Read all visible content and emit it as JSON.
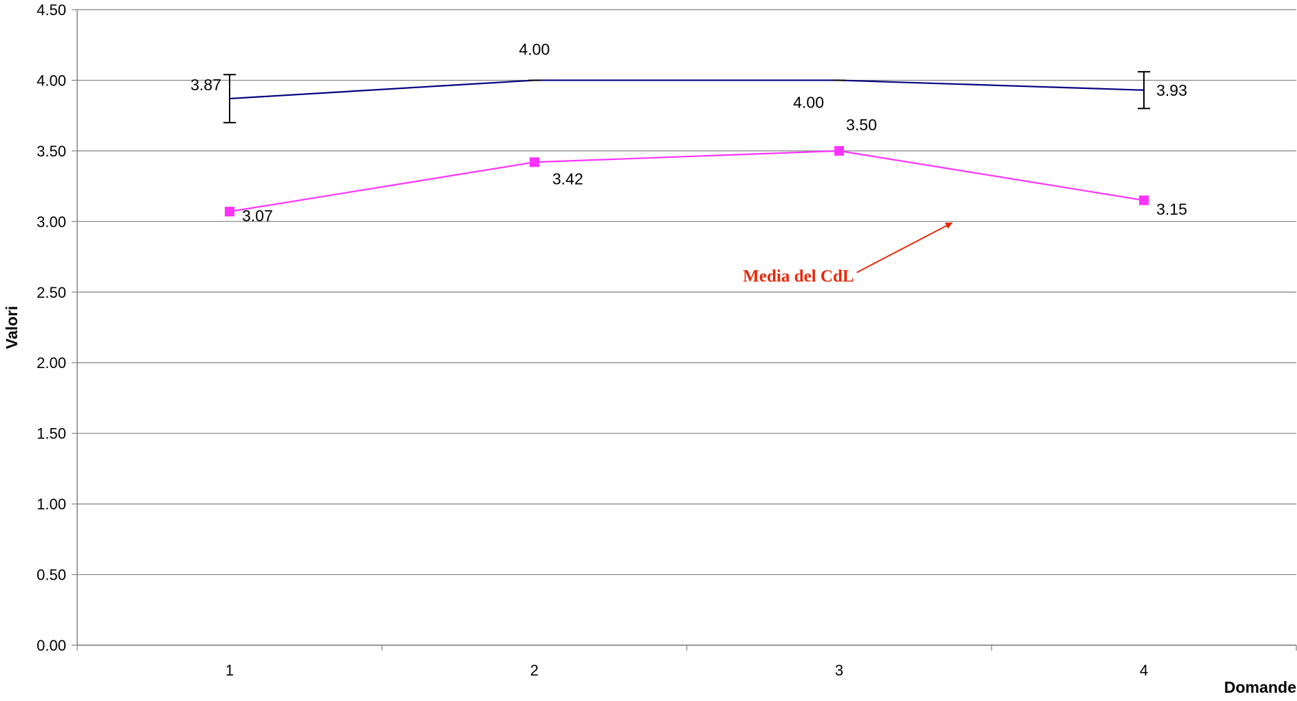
{
  "chart_data": {
    "type": "line",
    "title": "",
    "xlabel": "Domande",
    "ylabel": "Valori",
    "categories": [
      "1",
      "2",
      "3",
      "4"
    ],
    "ylim": [
      0,
      4.5
    ],
    "yticks": [
      "0.00",
      "0.50",
      "1.00",
      "1.50",
      "2.00",
      "2.50",
      "3.00",
      "3.50",
      "4.00",
      "4.50"
    ],
    "grid": true,
    "legend": "none",
    "series": [
      {
        "color": "#000080",
        "marker": "none",
        "values": [
          3.87,
          4.0,
          4.0,
          3.93
        ],
        "labels": [
          "3.87",
          "4.00",
          "4.00",
          "3.93"
        ],
        "error_low": [
          3.7,
          4.0,
          4.0,
          3.8
        ],
        "error_high": [
          4.04,
          4.0,
          4.0,
          4.06
        ]
      },
      {
        "color": "#ff33ff",
        "marker": "square",
        "values": [
          3.07,
          3.42,
          3.5,
          3.15
        ],
        "labels": [
          "3.07",
          "3.42",
          "3.50",
          "3.15"
        ]
      }
    ],
    "annotation": {
      "text": "Media del CdL",
      "color": "#e8290b",
      "points_to_x": 3.37,
      "points_to_y": 3.0
    }
  }
}
